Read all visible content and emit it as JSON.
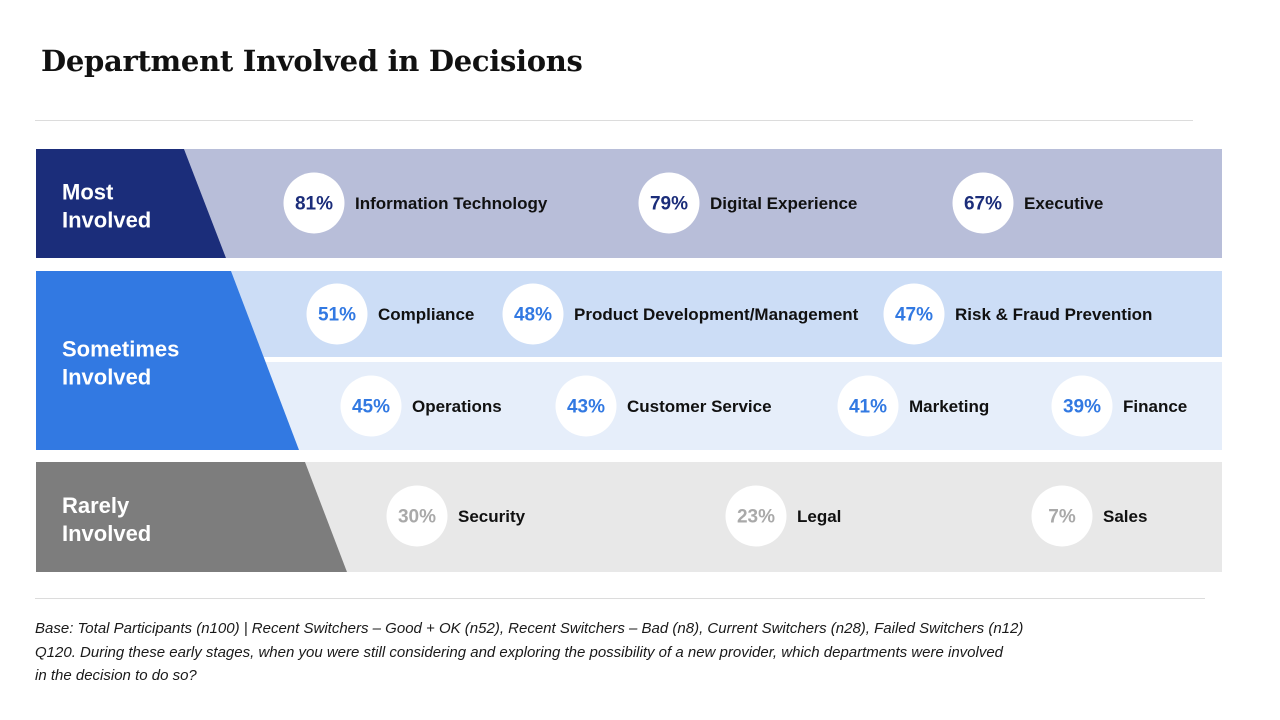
{
  "title": "Department Involved in Decisions",
  "colors": {
    "most_band": "#1b2d7a",
    "most_row": "#b8bed9",
    "sometimes_band": "#3279e2",
    "sometimes_row_1": "#ccddf6",
    "sometimes_row_2": "#e6eefa",
    "rarely_band": "#7d7d7d",
    "rarely_row": "#e8e8e8",
    "pct_most": "#1b2d7a",
    "pct_sometimes": "#3279e2",
    "pct_rarely": "#a9a9a9"
  },
  "chart_data": {
    "type": "table",
    "unit": "%",
    "groups": [
      {
        "label_lines": [
          "Most",
          "Involved"
        ],
        "rows": [
          [
            {
              "value": 81,
              "label": "Information Technology"
            },
            {
              "value": 79,
              "label": "Digital Experience"
            },
            {
              "value": 67,
              "label": "Executive"
            }
          ]
        ]
      },
      {
        "label_lines": [
          "Sometimes",
          "Involved"
        ],
        "rows": [
          [
            {
              "value": 51,
              "label": "Compliance"
            },
            {
              "value": 48,
              "label": "Product Development/Management"
            },
            {
              "value": 47,
              "label": "Risk & Fraud Prevention"
            }
          ],
          [
            {
              "value": 45,
              "label": "Operations"
            },
            {
              "value": 43,
              "label": "Customer Service"
            },
            {
              "value": 41,
              "label": "Marketing"
            },
            {
              "value": 39,
              "label": "Finance"
            }
          ]
        ]
      },
      {
        "label_lines": [
          "Rarely",
          "Involved"
        ],
        "rows": [
          [
            {
              "value": 30,
              "label": "Security"
            },
            {
              "value": 23,
              "label": "Legal"
            },
            {
              "value": 7,
              "label": "Sales"
            }
          ]
        ]
      }
    ]
  },
  "footnote": {
    "line1": "Base: Total Participants (n100) | Recent Switchers – Good + OK (n52), Recent Switchers – Bad (n8), Current Switchers (n28), Failed Switchers (n12)",
    "line2": "Q120. During these early stages, when you were still considering and exploring the possibility of a new provider, which departments were involved",
    "line3": "in the decision to do so?"
  }
}
